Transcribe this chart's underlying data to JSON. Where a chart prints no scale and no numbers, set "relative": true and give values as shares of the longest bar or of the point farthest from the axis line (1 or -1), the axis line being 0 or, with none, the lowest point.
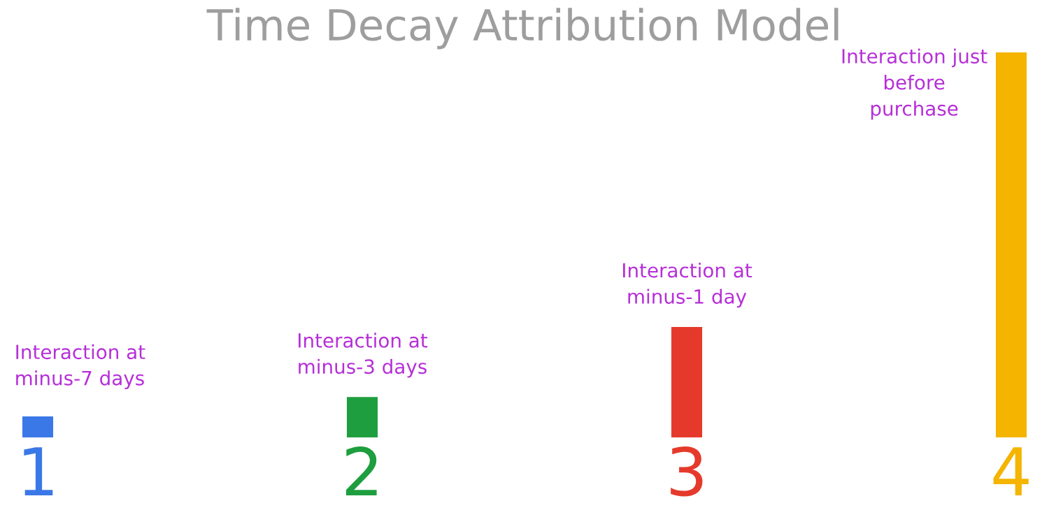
{
  "chart_data": {
    "type": "bar",
    "title": "Time Decay Attribution Model",
    "relative": true,
    "categories": [
      "1",
      "2",
      "3",
      "4"
    ],
    "values": [
      0.055,
      0.105,
      0.287,
      1
    ],
    "colors": [
      "#3b78e7",
      "#1e9e3e",
      "#e53a2b",
      "#f4b400"
    ],
    "annotations": [
      {
        "text": "Interaction at\nminus-7 days",
        "x": "1",
        "y": 0.055
      },
      {
        "text": "Interaction at\nminus-3 days",
        "x": "2",
        "y": 0.105
      },
      {
        "text": "Interaction at\nminus-1 day",
        "x": "3",
        "y": 0.287
      },
      {
        "text": "Interaction just\nbefore\npurchase",
        "x": "4",
        "y": 1
      }
    ],
    "grid": false,
    "legend": false
  }
}
